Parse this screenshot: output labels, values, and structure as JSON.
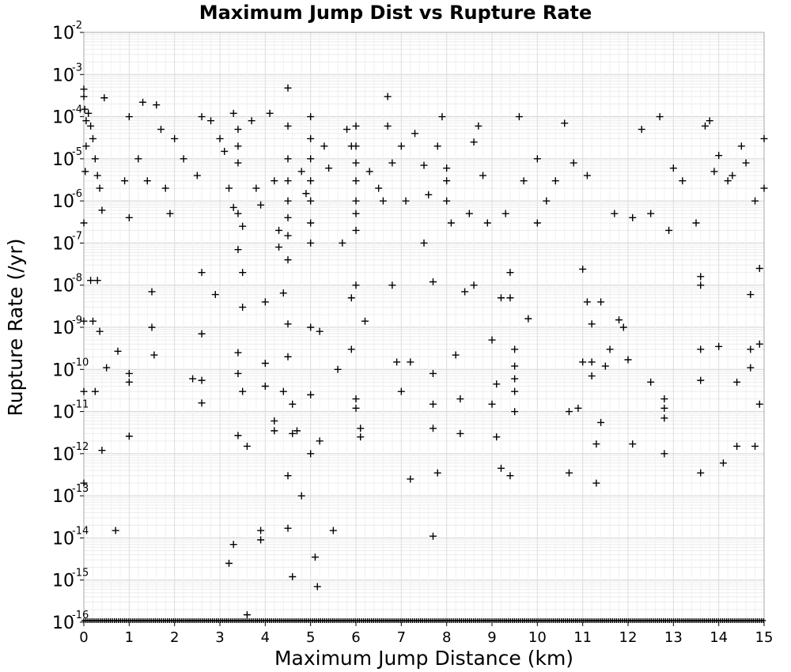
{
  "chart_data": {
    "type": "scatter",
    "title": "Maximum Jump Dist vs Rupture Rate",
    "xlabel": "Maximum Jump Distance (km)",
    "ylabel": "Rupture Rate (/yr)",
    "xlim": [
      0,
      15
    ],
    "ylim": [
      1e-16,
      0.01
    ],
    "yscale": "log",
    "grid": true,
    "marker": "plus",
    "marker_color": "#000000",
    "x_ticks": [
      "0",
      "1",
      "2",
      "3",
      "4",
      "5",
      "6",
      "7",
      "8",
      "9",
      "10",
      "11",
      "12",
      "13",
      "14",
      "15"
    ],
    "y_ticks": [
      {
        "base": "10",
        "exp": "-16"
      },
      {
        "base": "10",
        "exp": "-15"
      },
      {
        "base": "10",
        "exp": "-14"
      },
      {
        "base": "10",
        "exp": "-13"
      },
      {
        "base": "10",
        "exp": "-12"
      },
      {
        "base": "10",
        "exp": "-11"
      },
      {
        "base": "10",
        "exp": "-10"
      },
      {
        "base": "10",
        "exp": "-9"
      },
      {
        "base": "10",
        "exp": "-8"
      },
      {
        "base": "10",
        "exp": "-7"
      },
      {
        "base": "10",
        "exp": "-6"
      },
      {
        "base": "10",
        "exp": "-5"
      },
      {
        "base": "10",
        "exp": "-4"
      },
      {
        "base": "10",
        "exp": "-3"
      },
      {
        "base": "10",
        "exp": "-2"
      }
    ],
    "series": [
      {
        "points": [
          [
            0.0,
            0.00045
          ],
          [
            0.0,
            0.0003
          ],
          [
            0.02,
            0.00015
          ],
          [
            0.05,
            8e-05
          ],
          [
            0.05,
            2e-05
          ],
          [
            0.03,
            5e-06
          ],
          [
            0.0,
            3e-07
          ],
          [
            0.0,
            1.4e-09
          ],
          [
            0.0,
            3e-11
          ],
          [
            0.0,
            2e-13
          ],
          [
            0.1,
            0.00012
          ],
          [
            0.15,
            6e-05
          ],
          [
            0.2,
            3e-05
          ],
          [
            0.25,
            1e-05
          ],
          [
            0.3,
            4e-06
          ],
          [
            0.35,
            2e-06
          ],
          [
            0.4,
            6e-07
          ],
          [
            0.15,
            1.3e-08
          ],
          [
            0.3,
            1.3e-08
          ],
          [
            0.2,
            1.4e-09
          ],
          [
            0.35,
            8e-10
          ],
          [
            0.25,
            3e-11
          ],
          [
            0.4,
            1.2e-12
          ],
          [
            0.45,
            0.00028
          ],
          [
            0.5,
            1.1e-10
          ],
          [
            0.7,
            1.5e-14
          ],
          [
            0.75,
            2.7e-10
          ],
          [
            0.9,
            3e-06
          ],
          [
            1.0,
            0.0001
          ],
          [
            1.0,
            8e-11
          ],
          [
            1.0,
            5e-11
          ],
          [
            1.0,
            2.6e-12
          ],
          [
            1.0,
            4e-07
          ],
          [
            1.3,
            0.00022
          ],
          [
            1.2,
            1e-05
          ],
          [
            1.4,
            3e-06
          ],
          [
            1.5,
            7e-09
          ],
          [
            1.5,
            1e-09
          ],
          [
            1.55,
            2.2e-10
          ],
          [
            1.6,
            0.00019
          ],
          [
            1.7,
            5e-05
          ],
          [
            1.8,
            2e-06
          ],
          [
            1.9,
            5e-07
          ],
          [
            2.0,
            3e-05
          ],
          [
            2.2,
            1e-05
          ],
          [
            2.5,
            4e-06
          ],
          [
            2.6,
            0.0001
          ],
          [
            2.6,
            2e-08
          ],
          [
            2.6,
            7e-10
          ],
          [
            2.6,
            1.6e-11
          ],
          [
            2.4,
            6e-11
          ],
          [
            2.6,
            5.5e-11
          ],
          [
            2.8,
            8e-05
          ],
          [
            2.9,
            6e-09
          ],
          [
            3.0,
            3e-05
          ],
          [
            3.1,
            1.5e-05
          ],
          [
            3.2,
            2e-06
          ],
          [
            3.3,
            7e-07
          ],
          [
            3.3,
            0.00012
          ],
          [
            3.4,
            5e-05
          ],
          [
            3.4,
            2e-05
          ],
          [
            3.4,
            8e-06
          ],
          [
            3.4,
            5e-07
          ],
          [
            3.5,
            2.5e-07
          ],
          [
            3.4,
            7e-08
          ],
          [
            3.5,
            2e-08
          ],
          [
            3.5,
            3e-09
          ],
          [
            3.4,
            2.5e-10
          ],
          [
            3.4,
            8e-11
          ],
          [
            3.5,
            3e-11
          ],
          [
            3.4,
            2.7e-12
          ],
          [
            3.6,
            1.5e-12
          ],
          [
            3.2,
            2.5e-15
          ],
          [
            3.3,
            7e-15
          ],
          [
            3.6,
            1.5e-16
          ],
          [
            3.7,
            8e-05
          ],
          [
            3.8,
            2e-06
          ],
          [
            3.9,
            8e-07
          ],
          [
            4.0,
            1.4e-10
          ],
          [
            4.0,
            4e-11
          ],
          [
            3.9,
            1.5e-14
          ],
          [
            3.9,
            9e-15
          ],
          [
            4.0,
            4e-09
          ],
          [
            4.1,
            0.00012
          ],
          [
            4.2,
            3e-06
          ],
          [
            4.2,
            6e-12
          ],
          [
            4.2,
            3.5e-12
          ],
          [
            4.3,
            2e-07
          ],
          [
            4.3,
            8e-08
          ],
          [
            4.4,
            3e-11
          ],
          [
            4.4,
            6.5e-09
          ],
          [
            4.5,
            0.00048
          ],
          [
            4.5,
            6e-05
          ],
          [
            4.5,
            1e-05
          ],
          [
            4.5,
            3e-06
          ],
          [
            4.5,
            1e-06
          ],
          [
            4.5,
            4e-07
          ],
          [
            4.5,
            1.5e-07
          ],
          [
            4.5,
            4e-08
          ],
          [
            4.5,
            1.2e-09
          ],
          [
            4.5,
            2e-10
          ],
          [
            4.5,
            3e-13
          ],
          [
            4.5,
            1.7e-14
          ],
          [
            4.6,
            1.2e-15
          ],
          [
            4.6,
            3e-12
          ],
          [
            4.6,
            1.5e-11
          ],
          [
            4.7,
            3.5e-12
          ],
          [
            4.8,
            1e-13
          ],
          [
            4.8,
            5e-06
          ],
          [
            4.9,
            1.5e-06
          ],
          [
            5.0,
            0.0001
          ],
          [
            5.0,
            3e-05
          ],
          [
            5.0,
            1e-05
          ],
          [
            5.0,
            3e-06
          ],
          [
            5.0,
            1e-06
          ],
          [
            5.0,
            3e-07
          ],
          [
            5.0,
            1e-07
          ],
          [
            5.0,
            1e-09
          ],
          [
            5.0,
            2.5e-11
          ],
          [
            5.0,
            1e-12
          ],
          [
            5.1,
            3.5e-15
          ],
          [
            5.15,
            7e-16
          ],
          [
            5.2,
            2e-12
          ],
          [
            5.2,
            8e-10
          ],
          [
            5.3,
            2e-05
          ],
          [
            5.4,
            6e-06
          ],
          [
            5.5,
            1.5e-14
          ],
          [
            5.6,
            1e-10
          ],
          [
            5.7,
            1e-07
          ],
          [
            5.8,
            5e-05
          ],
          [
            5.9,
            2e-05
          ],
          [
            5.9,
            5e-09
          ],
          [
            5.9,
            3e-10
          ],
          [
            6.0,
            6e-05
          ],
          [
            6.0,
            2e-05
          ],
          [
            6.0,
            8e-06
          ],
          [
            6.0,
            3e-06
          ],
          [
            6.0,
            1e-06
          ],
          [
            6.0,
            5e-07
          ],
          [
            6.0,
            2e-07
          ],
          [
            6.0,
            1e-08
          ],
          [
            6.0,
            2e-11
          ],
          [
            6.0,
            1.2e-11
          ],
          [
            6.1,
            4e-12
          ],
          [
            6.1,
            2.5e-12
          ],
          [
            6.2,
            1.4e-09
          ],
          [
            6.3,
            5e-06
          ],
          [
            6.5,
            2e-06
          ],
          [
            6.6,
            1e-06
          ],
          [
            6.7,
            6e-05
          ],
          [
            6.7,
            0.0003
          ],
          [
            6.8,
            8e-06
          ],
          [
            6.8,
            1e-08
          ],
          [
            6.9,
            1.5e-10
          ],
          [
            7.0,
            2e-05
          ],
          [
            7.0,
            3e-11
          ],
          [
            7.1,
            1e-06
          ],
          [
            7.2,
            2.5e-13
          ],
          [
            7.2,
            1.5e-10
          ],
          [
            7.3,
            4e-05
          ],
          [
            7.5,
            7e-06
          ],
          [
            7.5,
            1e-07
          ],
          [
            7.6,
            1.4e-06
          ],
          [
            7.7,
            1.2e-08
          ],
          [
            7.7,
            8e-11
          ],
          [
            7.7,
            1.5e-11
          ],
          [
            7.7,
            4e-12
          ],
          [
            7.8,
            3.5e-13
          ],
          [
            7.7,
            1.1e-14
          ],
          [
            7.8,
            2e-05
          ],
          [
            7.9,
            0.0001
          ],
          [
            8.0,
            6e-06
          ],
          [
            8.0,
            3e-06
          ],
          [
            8.0,
            1e-06
          ],
          [
            8.1,
            3e-07
          ],
          [
            8.2,
            2.2e-10
          ],
          [
            8.3,
            2e-11
          ],
          [
            8.3,
            3e-12
          ],
          [
            8.4,
            7e-09
          ],
          [
            8.5,
            5e-07
          ],
          [
            8.6,
            1e-08
          ],
          [
            8.6,
            2.5e-05
          ],
          [
            8.7,
            6e-05
          ],
          [
            8.8,
            4e-06
          ],
          [
            8.9,
            3e-07
          ],
          [
            9.0,
            1.5e-11
          ],
          [
            9.0,
            5e-10
          ],
          [
            9.1,
            4.5e-11
          ],
          [
            9.1,
            2.5e-12
          ],
          [
            9.2,
            4.5e-13
          ],
          [
            9.2,
            5e-09
          ],
          [
            9.3,
            5e-07
          ],
          [
            9.4,
            2e-08
          ],
          [
            9.4,
            5e-09
          ],
          [
            9.5,
            3e-10
          ],
          [
            9.5,
            1.2e-10
          ],
          [
            9.5,
            6e-11
          ],
          [
            9.5,
            3e-11
          ],
          [
            9.5,
            1e-11
          ],
          [
            9.4,
            3e-13
          ],
          [
            9.6,
            0.0001
          ],
          [
            9.7,
            3e-06
          ],
          [
            9.8,
            1.6e-09
          ],
          [
            10.0,
            1e-05
          ],
          [
            10.0,
            3e-07
          ],
          [
            10.2,
            1e-06
          ],
          [
            10.4,
            3e-06
          ],
          [
            10.6,
            7e-05
          ],
          [
            10.7,
            3.5e-13
          ],
          [
            10.7,
            1e-11
          ],
          [
            10.8,
            8e-06
          ],
          [
            10.9,
            1.2e-11
          ],
          [
            11.0,
            2.4e-08
          ],
          [
            11.0,
            1.5e-10
          ],
          [
            11.1,
            4e-06
          ],
          [
            11.1,
            4e-09
          ],
          [
            11.2,
            1.2e-09
          ],
          [
            11.2,
            1.5e-10
          ],
          [
            11.2,
            7e-11
          ],
          [
            11.3,
            1.7e-12
          ],
          [
            11.3,
            2e-13
          ],
          [
            11.4,
            4e-09
          ],
          [
            11.4,
            5.5e-12
          ],
          [
            11.5,
            1.2e-10
          ],
          [
            11.6,
            3e-10
          ],
          [
            11.7,
            5e-07
          ],
          [
            11.8,
            1.5e-09
          ],
          [
            11.9,
            1e-09
          ],
          [
            12.0,
            1.7e-10
          ],
          [
            12.1,
            1.7e-12
          ],
          [
            12.1,
            4e-07
          ],
          [
            12.3,
            5e-05
          ],
          [
            12.5,
            5e-07
          ],
          [
            12.5,
            5e-11
          ],
          [
            12.7,
            0.0001
          ],
          [
            12.8,
            7e-12
          ],
          [
            12.8,
            2e-11
          ],
          [
            12.8,
            1.2e-11
          ],
          [
            12.8,
            1e-12
          ],
          [
            12.9,
            2e-07
          ],
          [
            13.0,
            6e-06
          ],
          [
            13.2,
            3e-06
          ],
          [
            13.5,
            3e-07
          ],
          [
            13.6,
            1e-08
          ],
          [
            13.6,
            1.6e-08
          ],
          [
            13.6,
            3e-10
          ],
          [
            13.6,
            5.5e-11
          ],
          [
            13.6,
            3.5e-13
          ],
          [
            13.7,
            6e-05
          ],
          [
            13.8,
            8e-05
          ],
          [
            14.0,
            3.5e-10
          ],
          [
            14.1,
            6e-13
          ],
          [
            14.2,
            3e-06
          ],
          [
            14.4,
            5e-11
          ],
          [
            14.4,
            1.5e-12
          ],
          [
            14.5,
            2e-05
          ],
          [
            14.7,
            6e-09
          ],
          [
            14.7,
            3e-10
          ],
          [
            14.7,
            1.1e-10
          ],
          [
            14.8,
            1.5e-12
          ],
          [
            14.9,
            2.5e-08
          ],
          [
            14.9,
            4e-10
          ],
          [
            14.9,
            1.5e-11
          ],
          [
            15.0,
            3e-05
          ],
          [
            15.0,
            2e-06
          ],
          [
            14.8,
            1e-06
          ],
          [
            14.6,
            8e-06
          ],
          [
            14.3,
            4e-06
          ],
          [
            14.0,
            1.2e-05
          ],
          [
            13.9,
            5e-06
          ]
        ]
      }
    ]
  }
}
